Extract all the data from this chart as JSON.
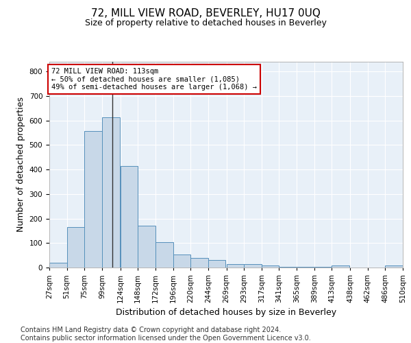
{
  "title": "72, MILL VIEW ROAD, BEVERLEY, HU17 0UQ",
  "subtitle": "Size of property relative to detached houses in Beverley",
  "xlabel": "Distribution of detached houses by size in Beverley",
  "ylabel": "Number of detached properties",
  "bar_color": "#c8d8e8",
  "bar_edge_color": "#5590bb",
  "background_color": "#e8f0f8",
  "annotation_line1": "72 MILL VIEW ROAD: 113sqm",
  "annotation_line2": "← 50% of detached houses are smaller (1,085)",
  "annotation_line3": "49% of semi-detached houses are larger (1,068) →",
  "annotation_box_color": "#ffffff",
  "annotation_box_edge": "#cc0000",
  "vline_x": 113,
  "bins_left": [
    27,
    51,
    75,
    99,
    124,
    148,
    172,
    196,
    220,
    244,
    269,
    293,
    317,
    341,
    365,
    389,
    413,
    438,
    462,
    486
  ],
  "bin_width": 24,
  "bar_heights": [
    20,
    165,
    558,
    612,
    415,
    170,
    103,
    52,
    38,
    31,
    14,
    14,
    9,
    3,
    3,
    3,
    8,
    0,
    0,
    8
  ],
  "xlim_left": 27,
  "xlim_right": 510,
  "ylim": [
    0,
    840
  ],
  "yticks": [
    0,
    100,
    200,
    300,
    400,
    500,
    600,
    700,
    800
  ],
  "xtick_labels": [
    "27sqm",
    "51sqm",
    "75sqm",
    "99sqm",
    "124sqm",
    "148sqm",
    "172sqm",
    "196sqm",
    "220sqm",
    "244sqm",
    "269sqm",
    "293sqm",
    "317sqm",
    "341sqm",
    "365sqm",
    "389sqm",
    "413sqm",
    "438sqm",
    "462sqm",
    "486sqm",
    "510sqm"
  ],
  "footer_text": "Contains HM Land Registry data © Crown copyright and database right 2024.\nContains public sector information licensed under the Open Government Licence v3.0.",
  "title_fontsize": 11,
  "subtitle_fontsize": 9,
  "ylabel_fontsize": 9,
  "xlabel_fontsize": 9,
  "tick_fontsize": 7.5,
  "footer_fontsize": 7
}
